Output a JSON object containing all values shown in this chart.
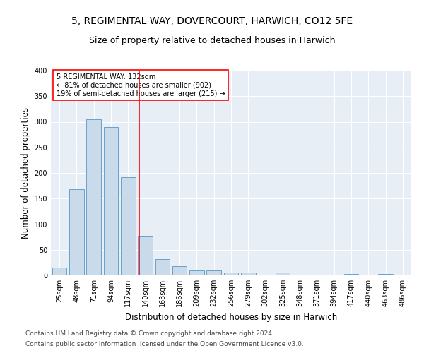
{
  "title1": "5, REGIMENTAL WAY, DOVERCOURT, HARWICH, CO12 5FE",
  "title2": "Size of property relative to detached houses in Harwich",
  "xlabel": "Distribution of detached houses by size in Harwich",
  "ylabel": "Number of detached properties",
  "categories": [
    "25sqm",
    "48sqm",
    "71sqm",
    "94sqm",
    "117sqm",
    "140sqm",
    "163sqm",
    "186sqm",
    "209sqm",
    "232sqm",
    "256sqm",
    "279sqm",
    "302sqm",
    "325sqm",
    "348sqm",
    "371sqm",
    "394sqm",
    "417sqm",
    "440sqm",
    "463sqm",
    "486sqm"
  ],
  "values": [
    15,
    168,
    305,
    290,
    192,
    77,
    32,
    18,
    10,
    9,
    5,
    6,
    0,
    5,
    0,
    0,
    0,
    3,
    0,
    3,
    0
  ],
  "bar_color": "#c9daea",
  "bar_edge_color": "#6aa0c8",
  "annotation_text_line1": "5 REGIMENTAL WAY: 132sqm",
  "annotation_text_line2": "← 81% of detached houses are smaller (902)",
  "annotation_text_line3": "19% of semi-detached houses are larger (215) →",
  "background_color": "#e8eef6",
  "footer1": "Contains HM Land Registry data © Crown copyright and database right 2024.",
  "footer2": "Contains public sector information licensed under the Open Government Licence v3.0.",
  "ylim": [
    0,
    400
  ],
  "yticks": [
    0,
    50,
    100,
    150,
    200,
    250,
    300,
    350,
    400
  ],
  "title1_fontsize": 10,
  "title2_fontsize": 9,
  "xlabel_fontsize": 8.5,
  "ylabel_fontsize": 8.5,
  "footer_fontsize": 6.5,
  "tick_fontsize": 7
}
